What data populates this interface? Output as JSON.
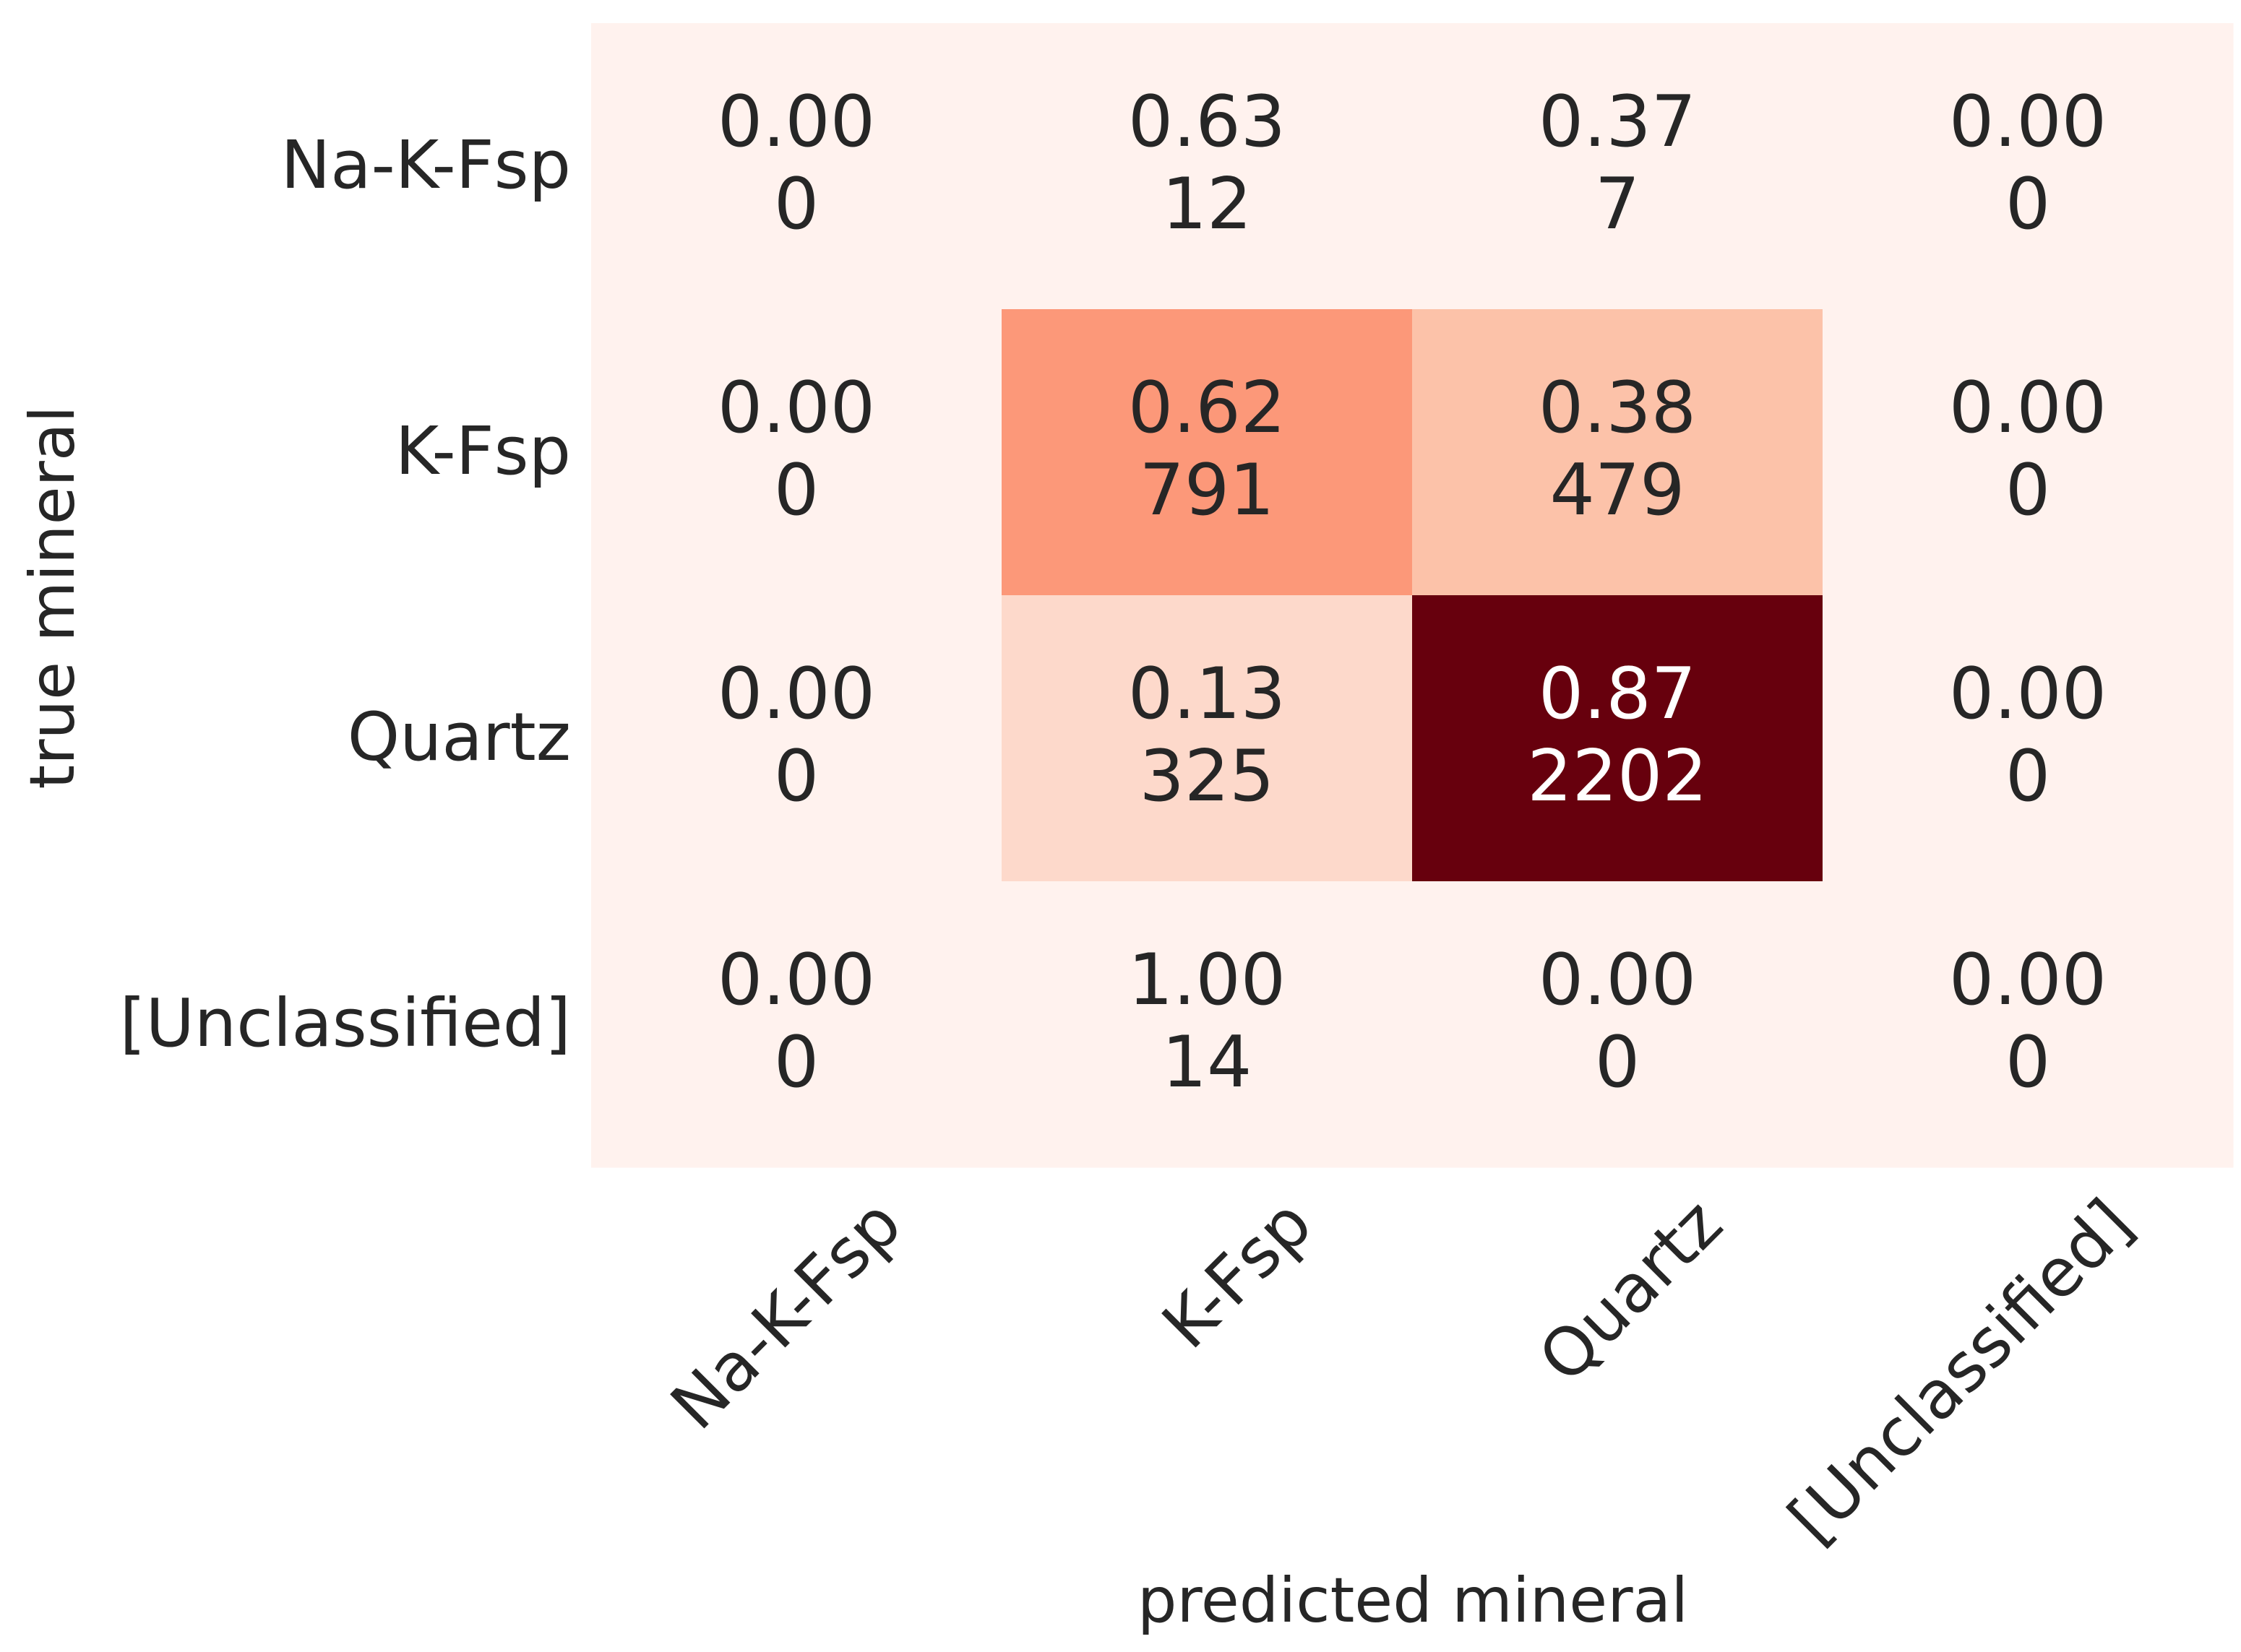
{
  "chart_data": {
    "type": "heatmap",
    "title": "",
    "xlabel": "predicted mineral",
    "ylabel": "true mineral",
    "x_categories": [
      "Na-K-Fsp",
      "K-Fsp",
      "Quartz",
      "[Unclassified]"
    ],
    "y_categories": [
      "Na-K-Fsp",
      "K-Fsp",
      "Quartz",
      "[Unclassified]"
    ],
    "fractions": [
      [
        0.0,
        0.63,
        0.37,
        0.0
      ],
      [
        0.0,
        0.62,
        0.38,
        0.0
      ],
      [
        0.0,
        0.13,
        0.87,
        0.0
      ],
      [
        0.0,
        1.0,
        0.0,
        0.0
      ]
    ],
    "counts": [
      [
        0,
        12,
        7,
        0
      ],
      [
        0,
        791,
        479,
        0
      ],
      [
        0,
        325,
        2202,
        0
      ],
      [
        0,
        14,
        0,
        0
      ]
    ],
    "fraction_labels": [
      [
        "0.00",
        "0.63",
        "0.37",
        "0.00"
      ],
      [
        "0.00",
        "0.62",
        "0.38",
        "0.00"
      ],
      [
        "0.00",
        "0.13",
        "0.87",
        "0.00"
      ],
      [
        "0.00",
        "1.00",
        "0.00",
        "0.00"
      ]
    ],
    "count_labels": [
      [
        "0",
        "12",
        "7",
        "0"
      ],
      [
        "0",
        "791",
        "479",
        "0"
      ],
      [
        "0",
        "325",
        "2202",
        "0"
      ],
      [
        "0",
        "14",
        "0",
        "0"
      ]
    ],
    "colormap": "Reds",
    "color_scale_basis": "counts",
    "cell_colors": [
      [
        "#fff2ee",
        "#fff2ee",
        "#fff2ee",
        "#fff2ee"
      ],
      [
        "#fff2ee",
        "#fc9879",
        "#fcc2a9",
        "#fff2ee"
      ],
      [
        "#fff2ee",
        "#fdd9cb",
        "#67000d",
        "#fff2ee"
      ],
      [
        "#fff2ee",
        "#fff2ee",
        "#fff2ee",
        "#fff2ee"
      ]
    ],
    "text_colors": {
      "dark": "#262626",
      "light": "#ffffff"
    },
    "grid": false,
    "colorbar": false
  }
}
